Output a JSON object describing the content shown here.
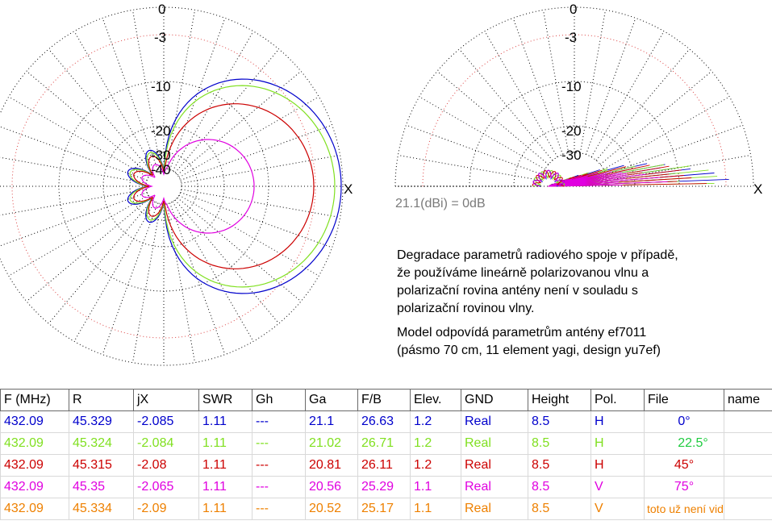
{
  "left_plot": {
    "labels": [
      "0",
      "-3",
      "-10",
      "-20",
      "-30",
      "-40"
    ],
    "axis_label": "X"
  },
  "right_plot": {
    "labels": [
      "0",
      "-3",
      "-10",
      "-20",
      "-30"
    ],
    "axis_label": "X"
  },
  "reference_note": "21.1(dBi) = 0dB",
  "description": [
    "Degradace parametrů radiového spoje v případě,\nže používáme lineárně polarizovanou vlnu a\npolarizační rovina antény není v souladu s\npolarizační rovinou vlny.",
    "Model odpovídá parametrům antény ef7011\n(pásmo 70 cm, 11 element yagi, design yu7ef)"
  ],
  "table": {
    "headers": [
      "F (MHz)",
      "R",
      "jX",
      "SWR",
      "Gh",
      "Ga",
      "F/B",
      "Elev.",
      "GND",
      "Height",
      "Pol.",
      "File",
      "name"
    ],
    "rows": [
      {
        "color": "#0000cc",
        "cells": [
          "432.09",
          "45.329",
          "-2.085",
          "1.11",
          "---",
          "21.1",
          "26.63",
          "1.2",
          "Real",
          "8.5",
          "H",
          "0°",
          ""
        ]
      },
      {
        "color": "#80e020",
        "cells": [
          "432.09",
          "45.324",
          "-2.084",
          "1.11",
          "---",
          "21.02",
          "26.71",
          "1.2",
          "Real",
          "8.5",
          "H",
          "22.5°",
          ""
        ],
        "file_color": "#20cc40"
      },
      {
        "color": "#cc0000",
        "cells": [
          "432.09",
          "45.315",
          "-2.08",
          "1.11",
          "---",
          "20.81",
          "26.11",
          "1.2",
          "Real",
          "8.5",
          "H",
          "45°",
          ""
        ]
      },
      {
        "color": "#e000e0",
        "cells": [
          "432.09",
          "45.35",
          "-2.065",
          "1.11",
          "---",
          "20.56",
          "25.29",
          "1.1",
          "Real",
          "8.5",
          "V",
          "75°",
          ""
        ]
      },
      {
        "color": "#ee8000",
        "cells": [
          "432.09",
          "45.334",
          "-2.09",
          "1.11",
          "---",
          "20.52",
          "25.17",
          "1.1",
          "Real",
          "8.5",
          "V",
          "toto už není vidět",
          ""
        ]
      }
    ]
  },
  "colors": {
    "grid_dotted": "#000000",
    "grid_red_dotted": "#dd4444",
    "trace_blue": "#0000cc",
    "trace_green": "#80e020",
    "trace_red": "#cc0000",
    "trace_magenta": "#e000e0"
  }
}
